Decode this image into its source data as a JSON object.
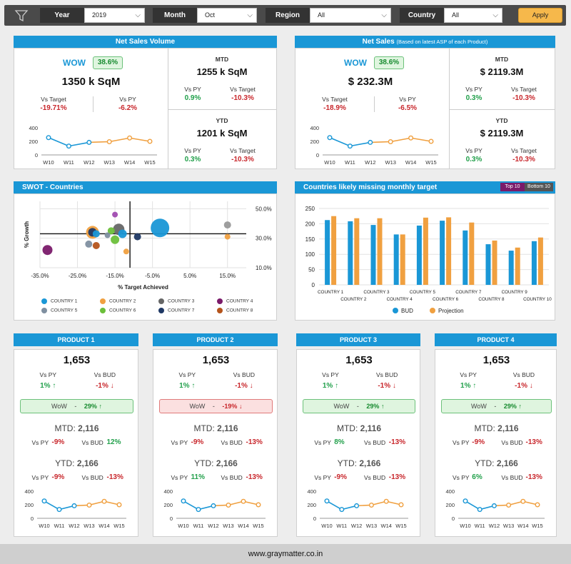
{
  "filters": {
    "year_label": "Year",
    "year_value": "2019",
    "month_label": "Month",
    "month_value": "Oct",
    "region_label": "Region",
    "region_value": "All",
    "country_label": "Country",
    "country_value": "All",
    "apply_label": "Apply"
  },
  "volume": {
    "title": "Net Sales Volume",
    "wow_label": "WOW",
    "wow_value": "38.6%",
    "main_value": "1350 k SqM",
    "vs_target_label": "Vs Target",
    "vs_target_value": "-19.71%",
    "vs_py_label": "Vs PY",
    "vs_py_value": "-6.2%",
    "mtd_label": "MTD",
    "mtd_value": "1255 k SqM",
    "mtd_vs_py_label": "Vs PY",
    "mtd_vs_py_value": "0.9%",
    "mtd_vs_target_label": "Vs Target",
    "mtd_vs_target_value": "-10.3%",
    "ytd_label": "YTD",
    "ytd_value": "1201 k SqM",
    "ytd_vs_py_label": "Vs PY",
    "ytd_vs_py_value": "0.3%",
    "ytd_vs_target_label": "Vs Target",
    "ytd_vs_target_value": "-10.3%"
  },
  "sales": {
    "title": "Net Sales",
    "title_note": "(Based on latest ASP of each Product)",
    "wow_label": "WOW",
    "wow_value": "38.6%",
    "main_value": "$ 232.3M",
    "vs_target_label": "Vs Target",
    "vs_target_value": "-18.9%",
    "vs_py_label": "Vs PY",
    "vs_py_value": "-6.5%",
    "mtd_label": "MTD",
    "mtd_value": "$ 2119.3M",
    "mtd_vs_py_label": "Vs PY",
    "mtd_vs_py_value": "0.3%",
    "mtd_vs_target_label": "Vs Target",
    "mtd_vs_target_value": "-10.3%",
    "ytd_label": "YTD",
    "ytd_value": "$ 2119.3M",
    "ytd_vs_py_label": "Vs PY",
    "ytd_vs_py_value": "0.3%",
    "ytd_vs_target_label": "Vs Target",
    "ytd_vs_target_value": "-10.3%"
  },
  "swot": {
    "title": "SWOT - Countries",
    "legend": [
      {
        "name": "COUNTRY 1",
        "color": "#1a97d6"
      },
      {
        "name": "COUNTRY 2",
        "color": "#f0a040"
      },
      {
        "name": "COUNTRY 3",
        "color": "#666666"
      },
      {
        "name": "COUNTRY 4",
        "color": "#7a1a6a"
      },
      {
        "name": "COUNTRY 5",
        "color": "#7f8fa0"
      },
      {
        "name": "COUNTRY 6",
        "color": "#6bbf3a"
      },
      {
        "name": "COUNTRY 7",
        "color": "#1f3864"
      },
      {
        "name": "COUNTRY 8",
        "color": "#b5541c"
      }
    ]
  },
  "missing": {
    "title": "Countries likely missing monthly target",
    "top_label": "Top 10",
    "bottom_label": "Bottom 10"
  },
  "products": [
    {
      "title": "PRODUCT 1",
      "value": "1,653",
      "vs_py_label": "Vs PY",
      "vs_py_value": "1%",
      "vs_bud_label": "Vs BUD",
      "vs_bud_value": "-1%",
      "wow_label": "WoW",
      "wow_sep": "-",
      "wow_value": "29%",
      "wow_status": "good",
      "mtd_label": "MTD:",
      "mtd_value": "2,116",
      "mtd_vs_py_label": "Vs PY",
      "mtd_vs_py_value": "-9%",
      "mtd_vs_bud_label": "Vs BUD",
      "mtd_vs_bud_value": "12%",
      "ytd_label": "YTD:",
      "ytd_value": "2,166",
      "ytd_vs_py_label": "Vs PY",
      "ytd_vs_py_value": "-9%",
      "ytd_vs_bud_label": "Vs BUD",
      "ytd_vs_bud_value": "-13%"
    },
    {
      "title": "PRODUCT 2",
      "value": "1,653",
      "vs_py_label": "Vs PY",
      "vs_py_value": "1%",
      "vs_bud_label": "Vs BUD",
      "vs_bud_value": "-1%",
      "wow_label": "WoW",
      "wow_sep": "-",
      "wow_value": "-19%",
      "wow_status": "bad",
      "mtd_label": "MTD:",
      "mtd_value": "2,116",
      "mtd_vs_py_label": "Vs PY",
      "mtd_vs_py_value": "-9%",
      "mtd_vs_bud_label": "Vs BUD",
      "mtd_vs_bud_value": "-13%",
      "ytd_label": "YTD:",
      "ytd_value": "2,166",
      "ytd_vs_py_label": "Vs PY",
      "ytd_vs_py_value": "11%",
      "ytd_vs_bud_label": "Vs BUD",
      "ytd_vs_bud_value": "-13%"
    },
    {
      "title": "PRODUCT 3",
      "value": "1,653",
      "vs_py_label": "Vs PY",
      "vs_py_value": "1%",
      "vs_bud_label": "Vs BUD",
      "vs_bud_value": "-1%",
      "wow_label": "WoW",
      "wow_sep": "-",
      "wow_value": "29%",
      "wow_status": "good",
      "mtd_label": "MTD:",
      "mtd_value": "2,116",
      "mtd_vs_py_label": "Vs PY",
      "mtd_vs_py_value": "8%",
      "mtd_vs_bud_label": "Vs BUD",
      "mtd_vs_bud_value": "-13%",
      "ytd_label": "YTD:",
      "ytd_value": "2,166",
      "ytd_vs_py_label": "Vs PY",
      "ytd_vs_py_value": "-9%",
      "ytd_vs_bud_label": "Vs BUD",
      "ytd_vs_bud_value": "-13%"
    },
    {
      "title": "PRODUCT 4",
      "value": "1,653",
      "vs_py_label": "Vs PY",
      "vs_py_value": "1%",
      "vs_bud_label": "Vs BUD",
      "vs_bud_value": "-1%",
      "wow_label": "WoW",
      "wow_sep": "-",
      "wow_value": "29%",
      "wow_status": "good",
      "mtd_label": "MTD:",
      "mtd_value": "2,116",
      "mtd_vs_py_label": "Vs PY",
      "mtd_vs_py_value": "-9%",
      "mtd_vs_bud_label": "Vs BUD",
      "mtd_vs_bud_value": "-13%",
      "ytd_label": "YTD:",
      "ytd_value": "2,166",
      "ytd_vs_py_label": "Vs PY",
      "ytd_vs_py_value": "6%",
      "ytd_vs_bud_label": "Vs BUD",
      "ytd_vs_bud_value": "-13%"
    }
  ],
  "footer": {
    "text": "www.graymatter.co.in"
  },
  "chart_data": [
    {
      "type": "line",
      "categories": [
        "W10",
        "W11",
        "W12",
        "W13",
        "W14",
        "W15"
      ],
      "values": [
        255,
        130,
        185,
        195,
        250,
        200
      ],
      "ylim": [
        0,
        400
      ],
      "yticks": [
        0,
        200,
        400
      ],
      "colors": [
        "#1a97d6",
        "#1a97d6",
        "#1a97d6",
        "#f0a040",
        "#f0a040",
        "#f0a040"
      ]
    },
    {
      "type": "scatter",
      "xlabel": "% Target Achieved",
      "ylabel": "% Growth",
      "xlim": [
        -35,
        20
      ],
      "ylim": [
        10,
        55
      ],
      "xticks": [
        "-35.0%",
        "-25.0%",
        "-15.0%",
        "-5.0%",
        "5.0%",
        "15.0%"
      ],
      "yticks": [
        "10.0%",
        "30.0%",
        "50.0%"
      ],
      "points": [
        {
          "name": "COUNTRY 1",
          "x": -3,
          "y": 37,
          "size": 13,
          "color": "#1a97d6"
        },
        {
          "name": "COUNTRY 1",
          "x": -13,
          "y": 33,
          "size": 6,
          "color": "#1a97d6"
        },
        {
          "name": "COUNTRY 1",
          "x": -20,
          "y": 33,
          "size": 5,
          "color": "#1a97d6"
        },
        {
          "name": "COUNTRY 2",
          "x": -21,
          "y": 34,
          "size": 9,
          "color": "#f0a040"
        },
        {
          "name": "COUNTRY 2",
          "x": -12,
          "y": 21,
          "size": 4,
          "color": "#f0a040"
        },
        {
          "name": "COUNTRY 2",
          "x": 15,
          "y": 31,
          "size": 4,
          "color": "#f0a040"
        },
        {
          "name": "COUNTRY 3",
          "x": -14,
          "y": 36,
          "size": 8,
          "color": "#666666"
        },
        {
          "name": "COUNTRY 3",
          "x": 15,
          "y": 39,
          "size": 5,
          "color": "#999999"
        },
        {
          "name": "COUNTRY 4",
          "x": -15,
          "y": 46,
          "size": 4,
          "color": "#a04bb0"
        },
        {
          "name": "COUNTRY 4",
          "x": -33,
          "y": 22,
          "size": 7,
          "color": "#7a1a6a"
        },
        {
          "name": "COUNTRY 5",
          "x": -22,
          "y": 26,
          "size": 5,
          "color": "#7f8fa0"
        },
        {
          "name": "COUNTRY 5",
          "x": -17,
          "y": 32,
          "size": 4,
          "color": "#7f8fa0"
        },
        {
          "name": "COUNTRY 6",
          "x": -16,
          "y": 35,
          "size": 5,
          "color": "#6bbf3a"
        },
        {
          "name": "COUNTRY 6",
          "x": -15,
          "y": 29,
          "size": 6,
          "color": "#6bbf3a"
        },
        {
          "name": "COUNTRY 7",
          "x": -21,
          "y": 34,
          "size": 6,
          "color": "#1f3864"
        },
        {
          "name": "COUNTRY 7",
          "x": -9,
          "y": 31,
          "size": 5,
          "color": "#1f3864"
        },
        {
          "name": "COUNTRY 8",
          "x": -20,
          "y": 25,
          "size": 5,
          "color": "#b5541c"
        }
      ]
    },
    {
      "type": "bar",
      "categories": [
        "COUNTRY 1",
        "COUNTRY 2",
        "COUNTRY 3",
        "COUNTRY 4",
        "COUNTRY 5",
        "COUNTRY 6",
        "COUNTRY 7",
        "COUNTRY 8",
        "COUNTRY 9",
        "COUNTRY 10"
      ],
      "ylim": [
        0,
        250
      ],
      "yticks": [
        0,
        50,
        100,
        150,
        200,
        250
      ],
      "series": [
        {
          "name": "BUD",
          "color": "#1a97d6",
          "values": [
            212,
            208,
            196,
            165,
            194,
            210,
            178,
            133,
            112,
            143
          ]
        },
        {
          "name": "Projection",
          "color": "#f0a040",
          "values": [
            225,
            218,
            218,
            165,
            220,
            221,
            204,
            145,
            122,
            155
          ]
        }
      ]
    }
  ]
}
